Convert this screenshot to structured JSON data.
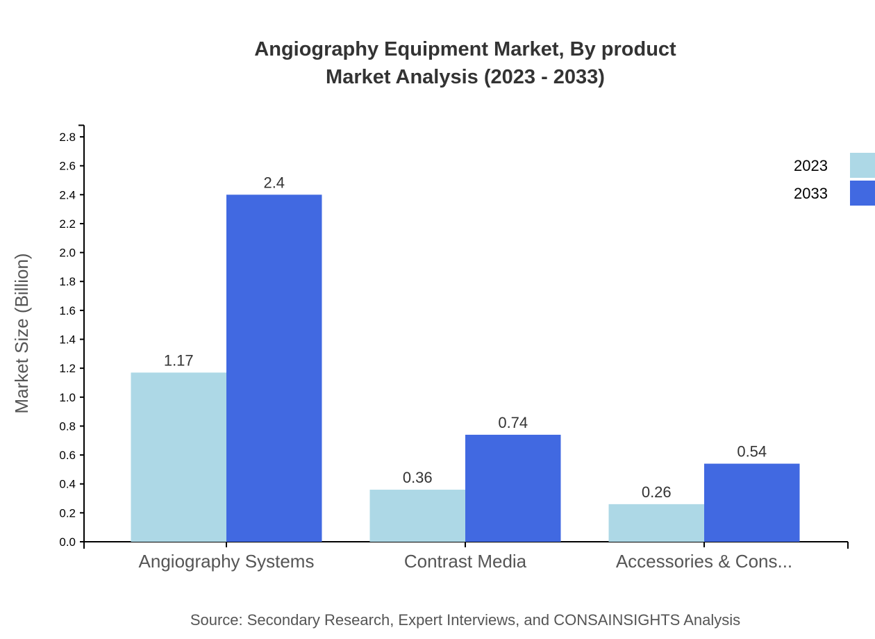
{
  "chart_data": {
    "type": "bar",
    "title": "Angiography Equipment Market, By product",
    "subtitle": "Market Analysis (2023 - 2033)",
    "xlabel": "",
    "ylabel": "Market Size (Billion)",
    "ylim": [
      0,
      2.88
    ],
    "yticks": [
      "0.0",
      "0.2",
      "0.4",
      "0.6",
      "0.8",
      "1.0",
      "1.2",
      "1.4",
      "1.6",
      "1.8",
      "2.0",
      "2.2",
      "2.4",
      "2.6",
      "2.8"
    ],
    "categories": [
      "Angiography Systems",
      "Contrast Media",
      "Accessories & Cons..."
    ],
    "series": [
      {
        "name": "2023",
        "color": "#ADD8E6",
        "values": [
          1.17,
          0.36,
          0.26
        ],
        "labels": [
          "1.17",
          "0.36",
          "0.26"
        ]
      },
      {
        "name": "2033",
        "color": "#4169E1",
        "values": [
          2.4,
          0.74,
          0.54
        ],
        "labels": [
          "2.4",
          "0.74",
          "0.54"
        ]
      }
    ],
    "grid": false,
    "legend_position": "top-right",
    "source": "Source: Secondary Research, Expert Interviews, and CONSAINSIGHTS Analysis"
  }
}
